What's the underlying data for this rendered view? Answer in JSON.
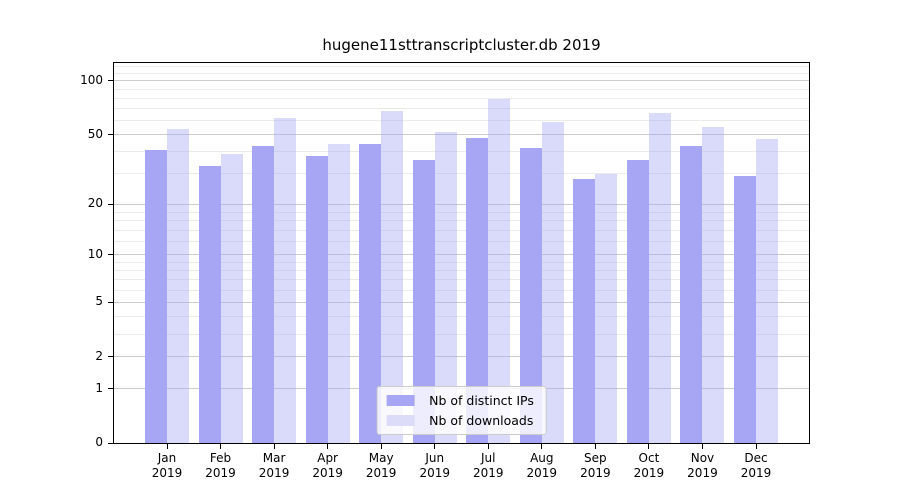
{
  "chart_data": {
    "type": "bar",
    "title": "hugene11sttranscriptcluster.db 2019",
    "categories": [
      "Jan",
      "Feb",
      "Mar",
      "Apr",
      "May",
      "Jun",
      "Jul",
      "Aug",
      "Sep",
      "Oct",
      "Nov",
      "Dec"
    ],
    "category_year": "2019",
    "series": [
      {
        "name": "Nb of distinct IPs",
        "color": "#a6a6f5",
        "values": [
          41,
          33,
          43,
          38,
          44,
          36,
          48,
          42,
          28,
          36,
          43,
          29
        ]
      },
      {
        "name": "Nb of downloads",
        "color": "#dcdcf8",
        "fill_rgba": "rgba(166,166,245,0.42)",
        "values": [
          54,
          39,
          62,
          44,
          68,
          52,
          79,
          59,
          30,
          66,
          55,
          47
        ]
      }
    ],
    "y_axis": {
      "scale": "log10(1+v)",
      "ticks": [
        0,
        1,
        2,
        5,
        10,
        20,
        50,
        100
      ],
      "minor_gridlines": [
        3,
        4,
        6,
        7,
        8,
        9,
        12,
        14,
        16,
        18,
        30,
        40,
        60,
        70,
        80,
        90,
        110,
        120
      ],
      "max": 126
    },
    "x_axis": {
      "tick_count": 12
    },
    "legend": {
      "position": "lower center"
    },
    "grid": true,
    "colors": {
      "major_grid": "#cccccc",
      "minor_grid": "#ebebeb",
      "axis": "#000000",
      "background": "#ffffff"
    }
  }
}
